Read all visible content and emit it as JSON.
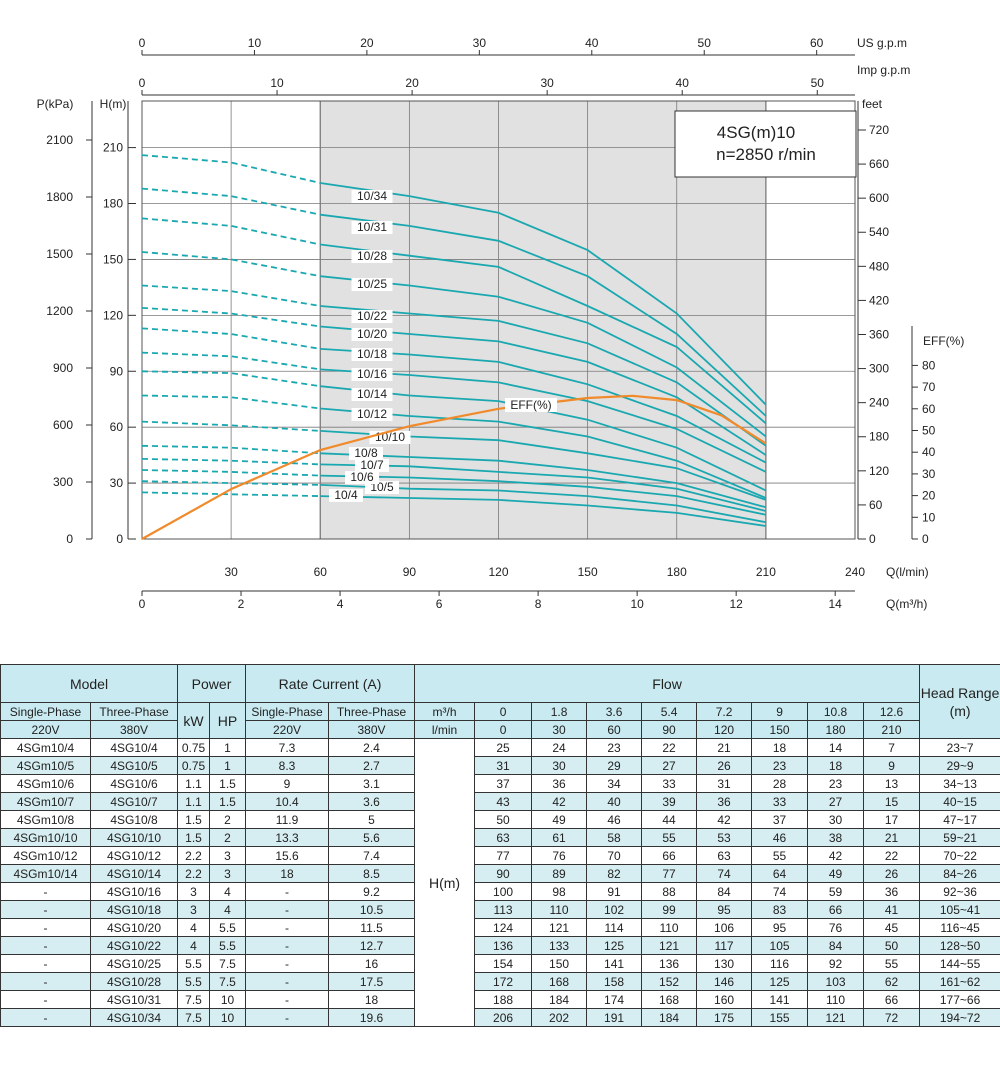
{
  "chart_data": {
    "type": "line",
    "model_box": {
      "line1": "4SG(m)10",
      "line2": "n=2850 r/min"
    },
    "axes": {
      "q_lmin": {
        "label": "Q(l/min)",
        "ticks": [
          0,
          30,
          60,
          90,
          120,
          150,
          180,
          210,
          240
        ],
        "range": [
          0,
          240
        ]
      },
      "q_m3h": {
        "label": "Q(m³/h)",
        "ticks": [
          0,
          2,
          4,
          6,
          8,
          10,
          12,
          14
        ]
      },
      "us_gpm": {
        "label": "US g.p.m",
        "ticks": [
          0,
          10,
          20,
          30,
          40,
          50,
          60
        ]
      },
      "imp_gpm": {
        "label": "Imp g.p.m",
        "ticks": [
          0,
          10,
          20,
          30,
          40,
          50
        ]
      },
      "head_m": {
        "label": "H(m)",
        "ticks": [
          0,
          30,
          60,
          90,
          120,
          150,
          180,
          210
        ],
        "range": [
          0,
          235
        ]
      },
      "pressure_kpa": {
        "label": "P(kPa)",
        "ticks": [
          0,
          300,
          600,
          900,
          1200,
          1500,
          1800,
          2100
        ]
      },
      "feet": {
        "label": "feet",
        "ticks": [
          0,
          60,
          120,
          180,
          240,
          300,
          360,
          420,
          480,
          540,
          600,
          660,
          720
        ]
      },
      "eff": {
        "label": "EFF(%)",
        "ticks": [
          0,
          10,
          20,
          30,
          40,
          50,
          60,
          70,
          80
        ]
      }
    },
    "recommended_range_lmin": [
      60,
      210
    ],
    "curve_flow_lmin": [
      0,
      30,
      60,
      90,
      120,
      150,
      180,
      210
    ],
    "series": [
      {
        "name": "10/4",
        "values": [
          25,
          24,
          23,
          22,
          21,
          18,
          14,
          7
        ]
      },
      {
        "name": "10/5",
        "values": [
          31,
          30,
          29,
          27,
          26,
          23,
          18,
          9
        ]
      },
      {
        "name": "10/6",
        "values": [
          37,
          36,
          34,
          33,
          31,
          28,
          23,
          13
        ]
      },
      {
        "name": "10/7",
        "values": [
          43,
          42,
          40,
          39,
          36,
          33,
          27,
          15
        ]
      },
      {
        "name": "10/8",
        "values": [
          50,
          49,
          46,
          44,
          42,
          37,
          30,
          17
        ]
      },
      {
        "name": "10/10",
        "values": [
          63,
          61,
          58,
          55,
          53,
          46,
          38,
          21
        ]
      },
      {
        "name": "10/12",
        "values": [
          77,
          76,
          70,
          66,
          63,
          55,
          42,
          22
        ]
      },
      {
        "name": "10/14",
        "values": [
          90,
          89,
          82,
          77,
          74,
          64,
          49,
          26
        ]
      },
      {
        "name": "10/16",
        "values": [
          100,
          98,
          91,
          88,
          84,
          74,
          59,
          36
        ]
      },
      {
        "name": "10/18",
        "values": [
          113,
          110,
          102,
          99,
          95,
          83,
          66,
          41
        ]
      },
      {
        "name": "10/20",
        "values": [
          124,
          121,
          114,
          110,
          106,
          95,
          76,
          45
        ]
      },
      {
        "name": "10/22",
        "values": [
          136,
          133,
          125,
          121,
          117,
          105,
          84,
          50
        ]
      },
      {
        "name": "10/25",
        "values": [
          154,
          150,
          141,
          136,
          130,
          116,
          92,
          55
        ]
      },
      {
        "name": "10/28",
        "values": [
          172,
          168,
          158,
          152,
          146,
          125,
          103,
          62
        ]
      },
      {
        "name": "10/31",
        "values": [
          188,
          184,
          174,
          168,
          160,
          141,
          110,
          66
        ]
      },
      {
        "name": "10/34",
        "values": [
          206,
          202,
          191,
          184,
          175,
          155,
          121,
          72
        ]
      }
    ],
    "efficiency": {
      "label": "EFF(%)",
      "flow_lmin": [
        0,
        30,
        60,
        90,
        120,
        150,
        165,
        180,
        195,
        210
      ],
      "values": [
        0,
        23,
        41,
        52,
        60,
        65,
        66,
        64,
        57,
        44
      ]
    }
  },
  "table": {
    "h_model": "Model",
    "h_power": "Power",
    "h_current": "Rate Current (A)",
    "h_flow": "Flow",
    "h_head": "Head Range (m)",
    "h_single": "Single-Phase",
    "h_three": "Three-Phase",
    "h_kw": "kW",
    "h_hp": "HP",
    "h_220": "220V",
    "h_380": "380V",
    "h_m3h": "m³/h",
    "h_lmin": "l/min",
    "h_hm": "H(m)",
    "flow_m3h": [
      "0",
      "1.8",
      "3.6",
      "5.4",
      "7.2",
      "9",
      "10.8",
      "12.6"
    ],
    "flow_lmin": [
      "0",
      "30",
      "60",
      "90",
      "120",
      "150",
      "180",
      "210"
    ],
    "rows": [
      {
        "single": "4SGm10/4",
        "three": "4SG10/4",
        "kw": "0.75",
        "hp": "1",
        "a220": "7.3",
        "a380": "2.4",
        "h": [
          "25",
          "24",
          "23",
          "22",
          "21",
          "18",
          "14",
          "7"
        ],
        "range": "23~7"
      },
      {
        "single": "4SGm10/5",
        "three": "4SG10/5",
        "kw": "0.75",
        "hp": "1",
        "a220": "8.3",
        "a380": "2.7",
        "h": [
          "31",
          "30",
          "29",
          "27",
          "26",
          "23",
          "18",
          "9"
        ],
        "range": "29~9"
      },
      {
        "single": "4SGm10/6",
        "three": "4SG10/6",
        "kw": "1.1",
        "hp": "1.5",
        "a220": "9",
        "a380": "3.1",
        "h": [
          "37",
          "36",
          "34",
          "33",
          "31",
          "28",
          "23",
          "13"
        ],
        "range": "34~13"
      },
      {
        "single": "4SGm10/7",
        "three": "4SG10/7",
        "kw": "1.1",
        "hp": "1.5",
        "a220": "10.4",
        "a380": "3.6",
        "h": [
          "43",
          "42",
          "40",
          "39",
          "36",
          "33",
          "27",
          "15"
        ],
        "range": "40~15"
      },
      {
        "single": "4SGm10/8",
        "three": "4SG10/8",
        "kw": "1.5",
        "hp": "2",
        "a220": "11.9",
        "a380": "5",
        "h": [
          "50",
          "49",
          "46",
          "44",
          "42",
          "37",
          "30",
          "17"
        ],
        "range": "47~17"
      },
      {
        "single": "4SGm10/10",
        "three": "4SG10/10",
        "kw": "1.5",
        "hp": "2",
        "a220": "13.3",
        "a380": "5.6",
        "h": [
          "63",
          "61",
          "58",
          "55",
          "53",
          "46",
          "38",
          "21"
        ],
        "range": "59~21"
      },
      {
        "single": "4SGm10/12",
        "three": "4SG10/12",
        "kw": "2.2",
        "hp": "3",
        "a220": "15.6",
        "a380": "7.4",
        "h": [
          "77",
          "76",
          "70",
          "66",
          "63",
          "55",
          "42",
          "22"
        ],
        "range": "70~22"
      },
      {
        "single": "4SGm10/14",
        "three": "4SG10/14",
        "kw": "2.2",
        "hp": "3",
        "a220": "18",
        "a380": "8.5",
        "h": [
          "90",
          "89",
          "82",
          "77",
          "74",
          "64",
          "49",
          "26"
        ],
        "range": "84~26"
      },
      {
        "single": "-",
        "three": "4SG10/16",
        "kw": "3",
        "hp": "4",
        "a220": "-",
        "a380": "9.2",
        "h": [
          "100",
          "98",
          "91",
          "88",
          "84",
          "74",
          "59",
          "36"
        ],
        "range": "92~36"
      },
      {
        "single": "-",
        "three": "4SG10/18",
        "kw": "3",
        "hp": "4",
        "a220": "-",
        "a380": "10.5",
        "h": [
          "113",
          "110",
          "102",
          "99",
          "95",
          "83",
          "66",
          "41"
        ],
        "range": "105~41"
      },
      {
        "single": "-",
        "three": "4SG10/20",
        "kw": "4",
        "hp": "5.5",
        "a220": "-",
        "a380": "11.5",
        "h": [
          "124",
          "121",
          "114",
          "110",
          "106",
          "95",
          "76",
          "45"
        ],
        "range": "116~45"
      },
      {
        "single": "-",
        "three": "4SG10/22",
        "kw": "4",
        "hp": "5.5",
        "a220": "-",
        "a380": "12.7",
        "h": [
          "136",
          "133",
          "125",
          "121",
          "117",
          "105",
          "84",
          "50"
        ],
        "range": "128~50"
      },
      {
        "single": "-",
        "three": "4SG10/25",
        "kw": "5.5",
        "hp": "7.5",
        "a220": "-",
        "a380": "16",
        "h": [
          "154",
          "150",
          "141",
          "136",
          "130",
          "116",
          "92",
          "55"
        ],
        "range": "144~55"
      },
      {
        "single": "-",
        "three": "4SG10/28",
        "kw": "5.5",
        "hp": "7.5",
        "a220": "-",
        "a380": "17.5",
        "h": [
          "172",
          "168",
          "158",
          "152",
          "146",
          "125",
          "103",
          "62"
        ],
        "range": "161~62"
      },
      {
        "single": "-",
        "three": "4SG10/31",
        "kw": "7.5",
        "hp": "10",
        "a220": "-",
        "a380": "18",
        "h": [
          "188",
          "184",
          "174",
          "168",
          "160",
          "141",
          "110",
          "66"
        ],
        "range": "177~66"
      },
      {
        "single": "-",
        "three": "4SG10/34",
        "kw": "7.5",
        "hp": "10",
        "a220": "-",
        "a380": "19.6",
        "h": [
          "206",
          "202",
          "191",
          "184",
          "175",
          "155",
          "121",
          "72"
        ],
        "range": "194~72"
      }
    ]
  },
  "colors": {
    "curve": "#1aa8b0",
    "efficiency": "#f08a2a",
    "shade": "#e1e1e1",
    "table_head": "#c9eaf0",
    "table_alt": "#d6eef2"
  }
}
